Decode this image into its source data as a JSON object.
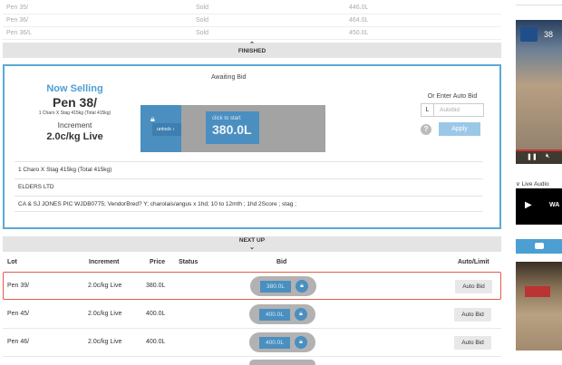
{
  "finished_rows": [
    {
      "lot": "Pen 35/",
      "status": "Sold",
      "price": "446.0L"
    },
    {
      "lot": "Pen 36/",
      "status": "Sold",
      "price": "464.0L"
    },
    {
      "lot": "Pen 36/L",
      "status": "Sold",
      "price": "450.0L"
    }
  ],
  "finished_label": "FINISHED",
  "now_selling": {
    "heading": "Now Selling",
    "lot": "Pen 38/",
    "description": "1 Charo X Stag 415kg (Total 415kg)",
    "increment_label": "Increment",
    "increment_value": "2.0c/kg Live"
  },
  "bid_panel": {
    "status": "Awaiting Bid",
    "unlock_label": "unlock",
    "click_label": "click to start",
    "current_value": "380.0L"
  },
  "auto_bid": {
    "label": "Or Enter Auto Bid",
    "prefix": "L",
    "placeholder": "Autobid",
    "apply_label": "Apply"
  },
  "lot_info": [
    "1 Charo X Stag 415kg (Total 415kg)",
    "ELDERS LTD",
    "CA & SJ JONES PIC WJDB0775; VendorBred? Y; charolais/angus x 1hd; 10 to 12mth ; 1hd 2Score ; stag ;"
  ],
  "next_up_label": "NEXT UP",
  "table": {
    "headers": {
      "lot": "Lot",
      "increment": "Increment",
      "price": "Price",
      "status": "Status",
      "bid": "Bid",
      "auto": "Auto/Limit"
    },
    "rows": [
      {
        "lot": "Pen 39/",
        "increment": "2.0c/kg Live",
        "price": "380.0L",
        "bid": "380.0L",
        "auto": "Auto Bid",
        "highlighted": true
      },
      {
        "lot": "Pen 45/",
        "increment": "2.0c/kg Live",
        "price": "400.0L",
        "bid": "400.0L",
        "auto": "Auto Bid",
        "highlighted": false
      },
      {
        "lot": "Pen 46/",
        "increment": "2.0c/kg Live",
        "price": "400.0L",
        "bid": "400.0L",
        "auto": "Auto Bid",
        "highlighted": false
      }
    ]
  },
  "sidebar": {
    "video_number": "38",
    "live_audio_label": "Live Audio",
    "audio_text": "WA"
  },
  "colors": {
    "accent": "#4a8fc0",
    "highlight": "#e55b4a",
    "heading": "#4b9fd3"
  }
}
